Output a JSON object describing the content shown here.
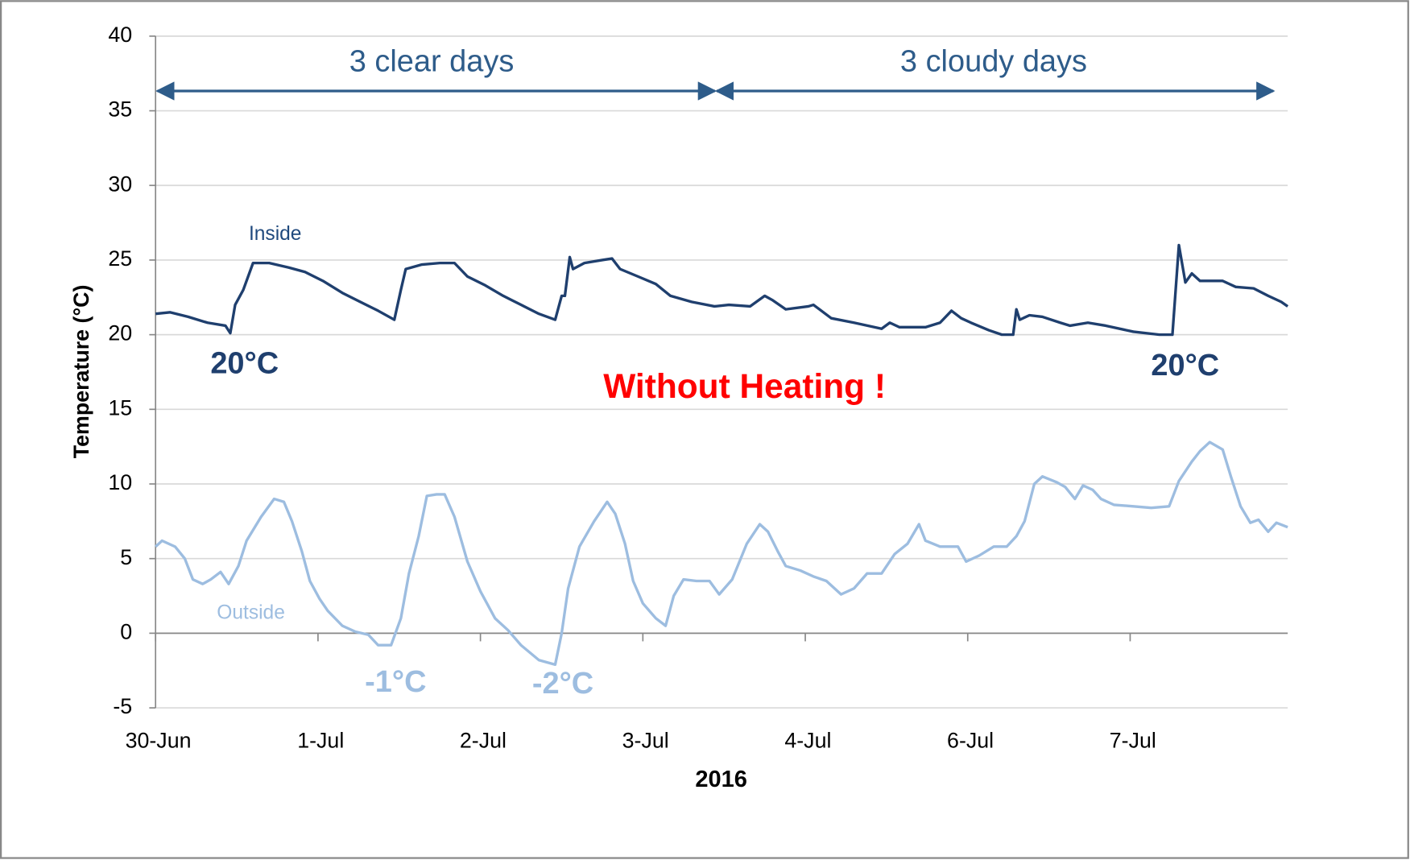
{
  "chart_data": {
    "type": "line",
    "xlabel": "2016",
    "ylabel": "Temperature (°C)",
    "xlim": [
      0,
      6.97
    ],
    "xticks": [
      {
        "value": 0,
        "label": "30-Jun"
      },
      {
        "value": 1,
        "label": "1-Jul"
      },
      {
        "value": 2,
        "label": "2-Jul"
      },
      {
        "value": 3,
        "label": "3-Jul"
      },
      {
        "value": 4,
        "label": "4-Jul"
      },
      {
        "value": 5,
        "label": "6-Jul"
      },
      {
        "value": 6,
        "label": "7-Jul"
      }
    ],
    "ylim": [
      -5,
      40
    ],
    "yticks": [
      -5,
      0,
      5,
      10,
      15,
      20,
      25,
      30,
      35,
      40
    ],
    "grid": true,
    "annotations": {
      "clear": "3 clear days",
      "cloudy": "3 cloudy days",
      "inside": "Inside",
      "outside": "Outside",
      "inside_min_left": "20°C",
      "inside_min_right": "20°C",
      "outside_min_1": "-1°C",
      "outside_min_2": "-2°C",
      "note": "Without Heating !"
    },
    "series": [
      {
        "name": "Inside",
        "color": "#1f3f6e",
        "x": [
          0,
          0.09,
          0.2,
          0.32,
          0.43,
          0.46,
          0.49,
          0.54,
          0.6,
          0.7,
          0.82,
          0.92,
          1.03,
          1.15,
          1.26,
          1.37,
          1.47,
          1.51,
          1.54,
          1.64,
          1.75,
          1.84,
          1.92,
          2.03,
          2.14,
          2.25,
          2.36,
          2.46,
          2.5,
          2.52,
          2.55,
          2.57,
          2.64,
          2.75,
          2.81,
          2.86,
          2.97,
          3.08,
          3.17,
          3.3,
          3.44,
          3.53,
          3.66,
          3.75,
          3.8,
          3.88,
          4.02,
          4.05,
          4.16,
          4.3,
          4.47,
          4.52,
          4.58,
          4.74,
          4.83,
          4.9,
          4.96,
          5.02,
          5.13,
          5.21,
          5.28,
          5.3,
          5.32,
          5.38,
          5.46,
          5.57,
          5.63,
          5.74,
          5.85,
          6.02,
          6.18,
          6.26,
          6.3,
          6.34,
          6.38,
          6.43,
          6.57,
          6.65,
          6.76,
          6.85,
          6.93,
          6.97
        ],
        "values": [
          21.4,
          21.5,
          21.2,
          20.8,
          20.6,
          20.1,
          22.0,
          23.0,
          24.8,
          24.8,
          24.5,
          24.2,
          23.6,
          22.8,
          22.2,
          21.6,
          21.0,
          23.0,
          24.4,
          24.7,
          24.8,
          24.8,
          23.9,
          23.3,
          22.6,
          22.0,
          21.4,
          21.0,
          22.6,
          22.6,
          25.2,
          24.4,
          24.8,
          25.0,
          25.1,
          24.4,
          23.9,
          23.4,
          22.6,
          22.2,
          21.9,
          22.0,
          21.9,
          22.6,
          22.3,
          21.7,
          21.9,
          22.0,
          21.1,
          20.8,
          20.4,
          20.8,
          20.5,
          20.5,
          20.8,
          21.6,
          21.1,
          20.8,
          20.3,
          20.0,
          20.0,
          21.7,
          21.0,
          21.3,
          21.2,
          20.8,
          20.6,
          20.8,
          20.6,
          20.2,
          20.0,
          20.0,
          26.0,
          23.5,
          24.1,
          23.6,
          23.6,
          23.2,
          23.1,
          22.6,
          22.2,
          21.9
        ]
      },
      {
        "name": "Outside",
        "color": "#9dbde0",
        "x": [
          0,
          0.04,
          0.12,
          0.18,
          0.23,
          0.29,
          0.34,
          0.4,
          0.45,
          0.51,
          0.56,
          0.65,
          0.73,
          0.79,
          0.84,
          0.9,
          0.95,
          1.01,
          1.06,
          1.15,
          1.23,
          1.31,
          1.37,
          1.45,
          1.51,
          1.56,
          1.62,
          1.67,
          1.73,
          1.78,
          1.84,
          1.92,
          2.0,
          2.09,
          2.17,
          2.25,
          2.36,
          2.46,
          2.5,
          2.54,
          2.61,
          2.7,
          2.78,
          2.83,
          2.89,
          2.94,
          3.0,
          3.08,
          3.14,
          3.19,
          3.25,
          3.33,
          3.41,
          3.47,
          3.55,
          3.64,
          3.72,
          3.77,
          3.83,
          3.88,
          3.97,
          4.05,
          4.13,
          4.22,
          4.3,
          4.38,
          4.47,
          4.55,
          4.63,
          4.7,
          4.74,
          4.83,
          4.94,
          4.99,
          5.07,
          5.16,
          5.24,
          5.3,
          5.35,
          5.41,
          5.46,
          5.55,
          5.6,
          5.66,
          5.71,
          5.77,
          5.82,
          5.9,
          6.02,
          6.13,
          6.24,
          6.3,
          6.38,
          6.43,
          6.49,
          6.57,
          6.62,
          6.68,
          6.74,
          6.79,
          6.85,
          6.9,
          6.97
        ],
        "values": [
          5.8,
          6.2,
          5.8,
          5.0,
          3.6,
          3.3,
          3.6,
          4.1,
          3.3,
          4.5,
          6.2,
          7.8,
          9.0,
          8.8,
          7.5,
          5.5,
          3.5,
          2.3,
          1.5,
          0.5,
          0.1,
          -0.1,
          -0.8,
          -0.8,
          1.0,
          4.0,
          6.5,
          9.2,
          9.3,
          9.3,
          7.8,
          4.8,
          2.8,
          1.0,
          0.2,
          -0.8,
          -1.8,
          -2.1,
          0.0,
          3.0,
          5.8,
          7.5,
          8.8,
          8.0,
          6.0,
          3.5,
          2.0,
          1.0,
          0.5,
          2.5,
          3.6,
          3.5,
          3.5,
          2.6,
          3.6,
          6.0,
          7.3,
          6.8,
          5.5,
          4.5,
          4.2,
          3.8,
          3.5,
          2.6,
          3.0,
          4.0,
          4.0,
          5.3,
          6.0,
          7.3,
          6.2,
          5.8,
          5.8,
          4.8,
          5.2,
          5.8,
          5.8,
          6.5,
          7.5,
          10.0,
          10.5,
          10.1,
          9.8,
          9.0,
          9.9,
          9.6,
          9.0,
          8.6,
          8.5,
          8.4,
          8.5,
          10.2,
          11.5,
          12.2,
          12.8,
          12.3,
          10.5,
          8.5,
          7.4,
          7.6,
          6.8,
          7.4,
          7.1
        ]
      }
    ]
  }
}
